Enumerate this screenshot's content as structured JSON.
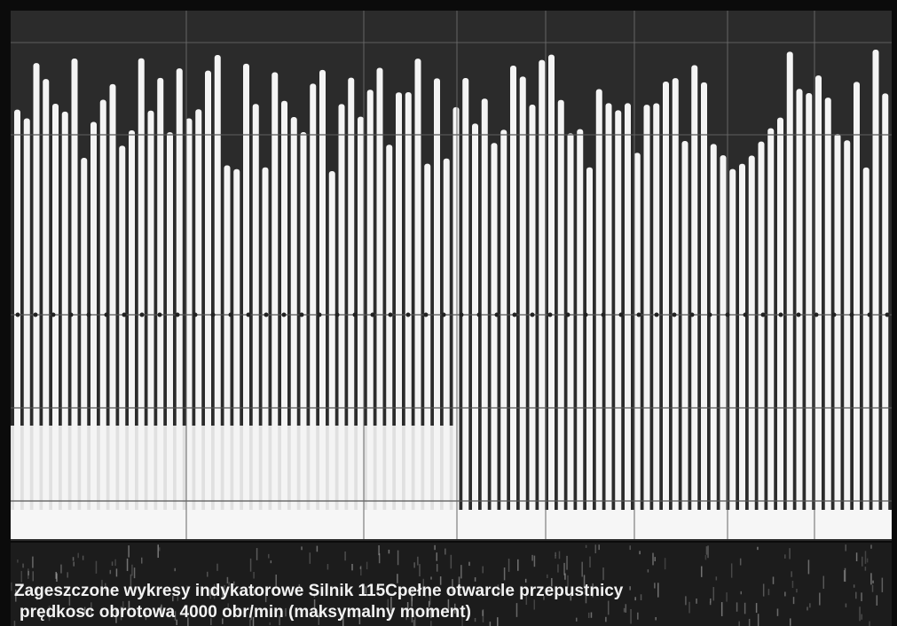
{
  "caption": {
    "line1": "Zageszczone wykresy indykatorowe Silnik 115Cpełne otwarcle przepustnicy",
    "line2": "prędkosc obrotowa 4000 obr/min (maksymalny moment)"
  }
}
